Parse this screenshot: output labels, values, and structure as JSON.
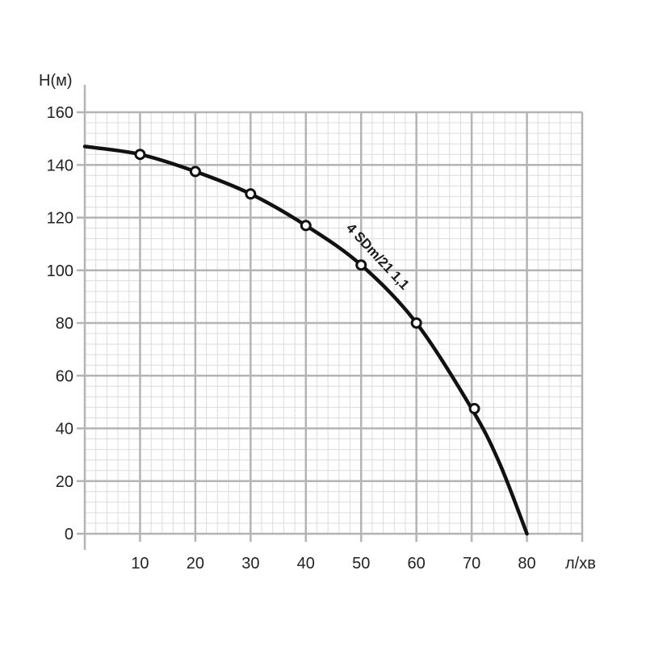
{
  "chart_data": {
    "type": "line",
    "title": "",
    "xlabel": "л/хв",
    "ylabel": "H(м)",
    "xlim": [
      0,
      90
    ],
    "ylim": [
      0,
      160
    ],
    "x_ticks": [
      10,
      20,
      30,
      40,
      50,
      60,
      70,
      80
    ],
    "y_ticks": [
      0,
      20,
      40,
      60,
      80,
      100,
      120,
      140,
      160
    ],
    "grid": true,
    "legend": "none",
    "series": [
      {
        "name": "4 SDm/21 1,1",
        "color": "#111111",
        "curve": {
          "x": [
            0,
            10,
            20,
            30,
            40,
            50,
            60,
            70,
            75,
            80
          ],
          "y": [
            147,
            144,
            137.5,
            129,
            117,
            102,
            80,
            47.5,
            27,
            0
          ]
        },
        "markers": {
          "x": [
            10,
            20,
            30,
            40,
            50,
            60,
            70.5
          ],
          "y": [
            144,
            137.5,
            129,
            117,
            102,
            80,
            47.5
          ]
        }
      }
    ]
  }
}
